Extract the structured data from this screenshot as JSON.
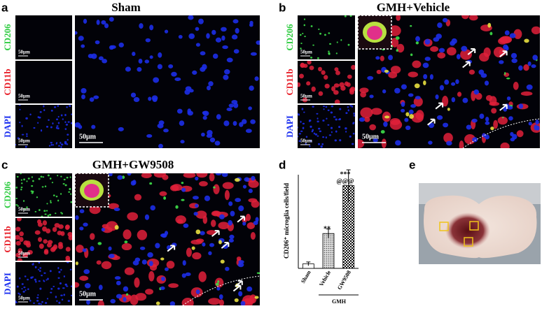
{
  "panels": [
    {
      "label": "a",
      "title": "Sham",
      "channels": [
        "CD206",
        "CD11b",
        "DAPI"
      ],
      "scale_small": [
        "50μm",
        "50μm",
        "50μm"
      ],
      "scale_big": "50μm"
    },
    {
      "label": "b",
      "title": "GMH+Vehicle",
      "channels": [
        "CD206",
        "CD11b",
        "DAPI"
      ],
      "scale_small": [
        "50μm",
        "50μm",
        "50μm"
      ],
      "scale_big": "50μm"
    },
    {
      "label": "c",
      "title": "GMH+GW9508",
      "channels": [
        "CD206",
        "CD11b",
        "DAPI"
      ],
      "scale_small": [
        "50μm",
        "50μm",
        "50μm"
      ],
      "scale_big": "50μm"
    }
  ],
  "chart_data": {
    "type": "bar",
    "label": "d",
    "ylabel": "CD206⁺ microglia cells/field",
    "categories": [
      "Sham",
      "Vehicle",
      "GW9508"
    ],
    "values": [
      1.2,
      9.3,
      22.1
    ],
    "errors": [
      0.5,
      1.2,
      4.2
    ],
    "ylim": [
      0,
      25
    ],
    "annotations": [
      "**",
      "***",
      "@@@"
    ],
    "group_label": "GMH"
  },
  "photo": {
    "label": "e"
  }
}
